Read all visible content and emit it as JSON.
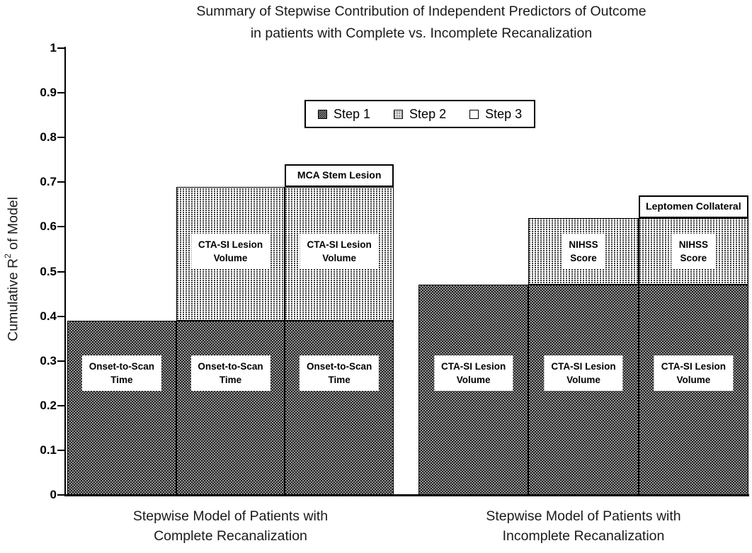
{
  "chart_data": {
    "type": "bar",
    "stacked": true,
    "title": "Summary of Stepwise Contribution of Independent Predictors of Outcome in patients with Complete vs. Incomplete Recanalization",
    "title_lines": [
      "Summary of Stepwise Contribution of Independent Predictors of Outcome",
      "in patients with Complete vs. Incomplete Recanalization"
    ],
    "ylabel": "Cumulative R2 of Model",
    "ylabel_parts": {
      "pre": "Cumulative R",
      "sup": "2",
      "post": " of Model"
    },
    "ylim": [
      0,
      1
    ],
    "ytick_step": 0.1,
    "yticks": [
      "1",
      "0.9",
      "0.8",
      "0.7",
      "0.6",
      "0.5",
      "0.4",
      "0.3",
      "0.2",
      "0.1",
      "0"
    ],
    "grid": false,
    "legend": {
      "position": "top-center",
      "entries": [
        "Step 1",
        "Step 2",
        "Step 3"
      ]
    },
    "groups": [
      {
        "caption": "Stepwise Model of Patients with Complete Recanalization",
        "caption_lines": [
          "Stepwise Model of Patients with",
          "Complete Recanalization"
        ],
        "bars": [
          {
            "segments": [
              {
                "step": 1,
                "from": 0,
                "to": 0.39,
                "label": "Onset-to-Scan Time",
                "label_lines": [
                  "Onset-to-Scan",
                  "Time"
                ]
              }
            ]
          },
          {
            "segments": [
              {
                "step": 1,
                "from": 0,
                "to": 0.39,
                "label": "Onset-to-Scan Time",
                "label_lines": [
                  "Onset-to-Scan",
                  "Time"
                ]
              },
              {
                "step": 2,
                "from": 0.39,
                "to": 0.69,
                "label": "CTA-SI Lesion Volume",
                "label_lines": [
                  "CTA-SI Lesion",
                  "Volume"
                ]
              }
            ]
          },
          {
            "segments": [
              {
                "step": 1,
                "from": 0,
                "to": 0.39,
                "label": "Onset-to-Scan Time",
                "label_lines": [
                  "Onset-to-Scan",
                  "Time"
                ]
              },
              {
                "step": 2,
                "from": 0.39,
                "to": 0.69,
                "label": "CTA-SI Lesion Volume",
                "label_lines": [
                  "CTA-SI Lesion",
                  "Volume"
                ]
              },
              {
                "step": 3,
                "from": 0.69,
                "to": 0.74,
                "label": "MCA Stem Lesion",
                "label_lines": [
                  "MCA Stem Lesion"
                ]
              }
            ]
          }
        ]
      },
      {
        "caption": "Stepwise Model of Patients with Incomplete Recanalization",
        "caption_lines": [
          "Stepwise Model of Patients with",
          "Incomplete Recanalization"
        ],
        "bars": [
          {
            "segments": [
              {
                "step": 1,
                "from": 0,
                "to": 0.47,
                "label": "CTA-SI Lesion Volume",
                "label_lines": [
                  "CTA-SI Lesion",
                  "Volume"
                ]
              }
            ]
          },
          {
            "segments": [
              {
                "step": 1,
                "from": 0,
                "to": 0.47,
                "label": "CTA-SI Lesion Volume",
                "label_lines": [
                  "CTA-SI Lesion",
                  "Volume"
                ]
              },
              {
                "step": 2,
                "from": 0.47,
                "to": 0.62,
                "label": "NIHSS Score",
                "label_lines": [
                  "NIHSS",
                  "Score"
                ]
              }
            ]
          },
          {
            "segments": [
              {
                "step": 1,
                "from": 0,
                "to": 0.47,
                "label": "CTA-SI Lesion Volume",
                "label_lines": [
                  "CTA-SI Lesion",
                  "Volume"
                ]
              },
              {
                "step": 2,
                "from": 0.47,
                "to": 0.62,
                "label": "NIHSS Score",
                "label_lines": [
                  "NIHSS",
                  "Score"
                ]
              },
              {
                "step": 3,
                "from": 0.62,
                "to": 0.67,
                "label": "Leptomen Collateral",
                "label_lines": [
                  "Leptomen Collateral"
                ]
              }
            ]
          }
        ]
      }
    ]
  }
}
